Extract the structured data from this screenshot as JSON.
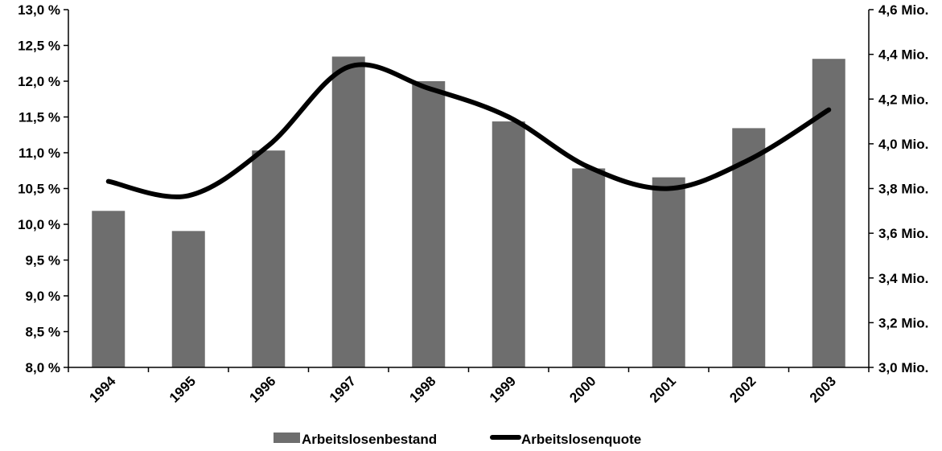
{
  "chart_data": {
    "type": "bar",
    "categories": [
      "1994",
      "1995",
      "1996",
      "1997",
      "1998",
      "1999",
      "2000",
      "2001",
      "2002",
      "2003"
    ],
    "series": [
      {
        "name": "Arbeitslosenbestand",
        "type": "bar",
        "axis": "right",
        "values": [
          3.7,
          3.61,
          3.97,
          4.39,
          4.28,
          4.1,
          3.89,
          3.85,
          4.07,
          4.38
        ]
      },
      {
        "name": "Arbeitslosenquote",
        "type": "line",
        "smooth": true,
        "axis": "left",
        "values": [
          10.6,
          10.4,
          11.1,
          12.2,
          11.9,
          11.5,
          10.8,
          10.5,
          10.9,
          11.6
        ]
      }
    ],
    "y_left": {
      "range": [
        8.0,
        13.0
      ],
      "ticks": [
        "8,0 %",
        "8,5 %",
        "9,0 %",
        "9,5 %",
        "10,0 %",
        "10,5 %",
        "11,0 %",
        "11,5 %",
        "12,0 %",
        "12,5 %",
        "13,0 %"
      ]
    },
    "y_right": {
      "range": [
        3.0,
        4.6
      ],
      "ticks": [
        "3,0 Mio.",
        "3,2 Mio.",
        "3,4 Mio.",
        "3,6 Mio.",
        "3,8 Mio.",
        "4,0 Mio.",
        "4,2 Mio.",
        "4,4 Mio.",
        "4,6 Mio."
      ]
    },
    "title": "",
    "xlabel": "",
    "grid": false,
    "legend_position": "bottom-center",
    "colors": {
      "bar": "#6e6e6e",
      "line": "#000000",
      "axis": "#000000"
    }
  }
}
